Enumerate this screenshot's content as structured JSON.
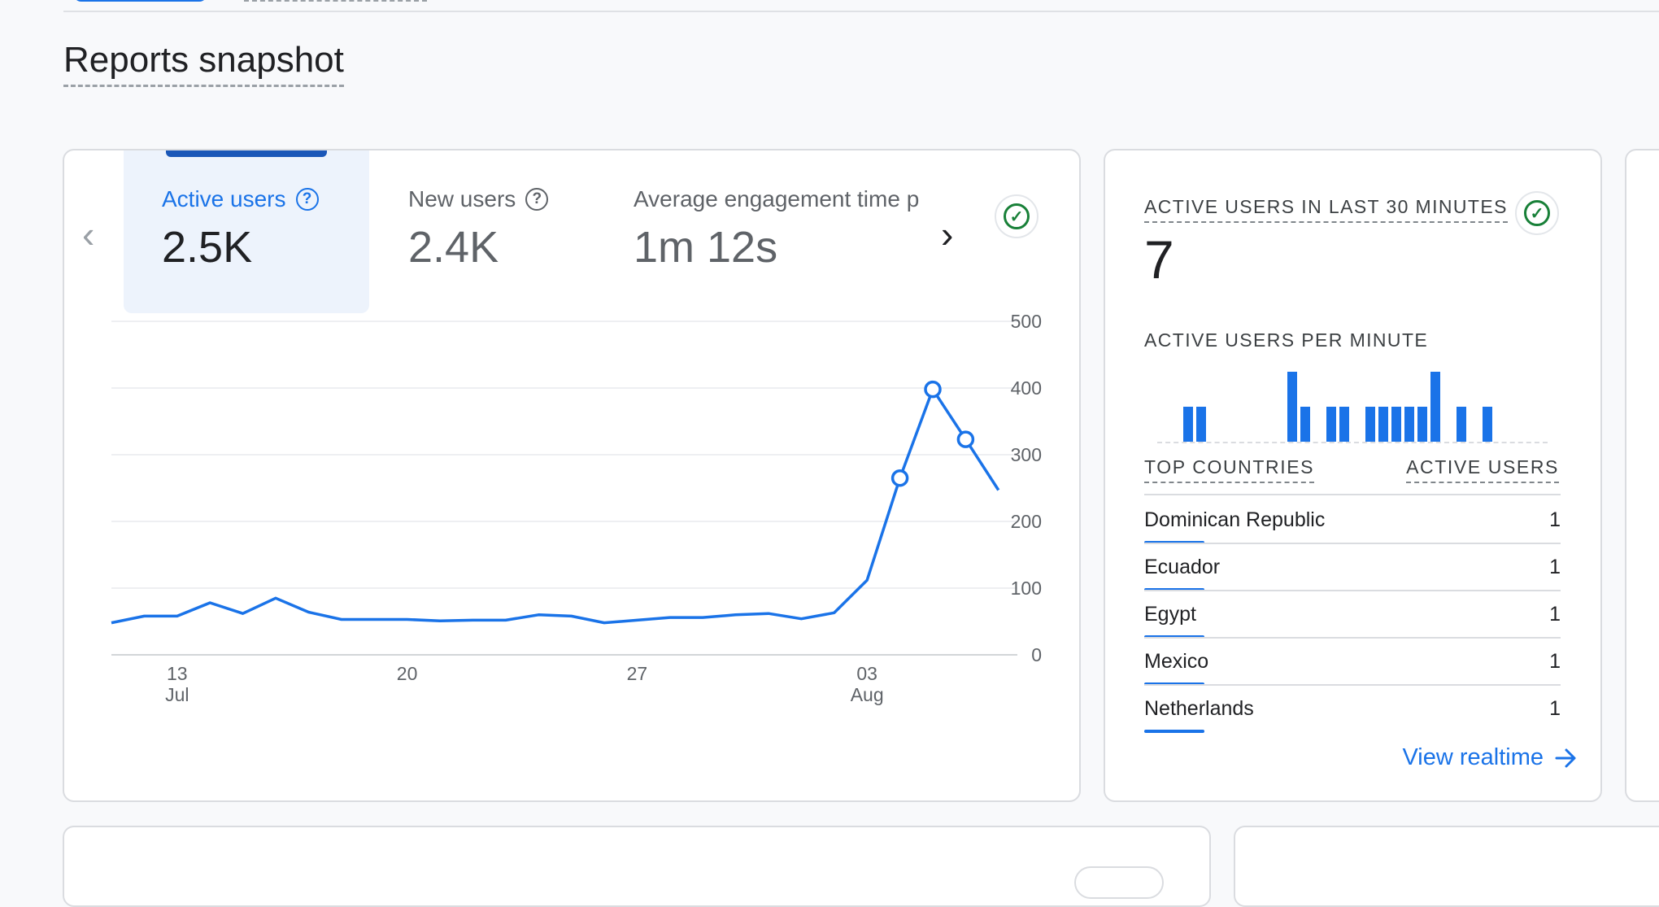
{
  "page": {
    "title": "Reports snapshot"
  },
  "overview_card": {
    "tabs": [
      {
        "label": "Active users",
        "value": "2.5K",
        "active": true
      },
      {
        "label": "New users",
        "value": "2.4K",
        "active": false
      },
      {
        "label": "Average engagement time p",
        "value": "1m 12s",
        "active": false
      }
    ]
  },
  "chart_data": {
    "type": "line",
    "x_ticks": [
      {
        "day": "13",
        "month": "Jul"
      },
      {
        "day": "20",
        "month": ""
      },
      {
        "day": "27",
        "month": ""
      },
      {
        "day": "03",
        "month": "Aug"
      }
    ],
    "y_ticks": [
      "500",
      "400",
      "300",
      "200",
      "100",
      "0"
    ],
    "ylim": [
      0,
      500
    ],
    "series": [
      {
        "color": "#1a73e8",
        "values": [
          48,
          58,
          58,
          78,
          62,
          85,
          64,
          53,
          53,
          53,
          51,
          52,
          52,
          60,
          58,
          48,
          52,
          56,
          56,
          60,
          62,
          54,
          63,
          112,
          265,
          398,
          323,
          247
        ],
        "marked_points": [
          24,
          25,
          26
        ]
      }
    ]
  },
  "realtime_card": {
    "heading": "ACTIVE USERS IN LAST 30 MINUTES",
    "value": "7",
    "per_minute_label": "ACTIVE USERS PER MINUTE",
    "per_minute": [
      0,
      0,
      1,
      1,
      0,
      0,
      0,
      0,
      0,
      0,
      2,
      1,
      0,
      1,
      1,
      0,
      1,
      1,
      1,
      1,
      1,
      2,
      0,
      1,
      0,
      1,
      0,
      0,
      0,
      0
    ],
    "table_headers": {
      "country": "TOP COUNTRIES",
      "users": "ACTIVE USERS"
    },
    "countries": [
      {
        "name": "Dominican Republic",
        "users": "1"
      },
      {
        "name": "Ecuador",
        "users": "1"
      },
      {
        "name": "Egypt",
        "users": "1"
      },
      {
        "name": "Mexico",
        "users": "1"
      },
      {
        "name": "Netherlands",
        "users": "1"
      }
    ],
    "link": "View realtime"
  },
  "colors": {
    "accent": "#1a73e8",
    "success": "#188038"
  }
}
